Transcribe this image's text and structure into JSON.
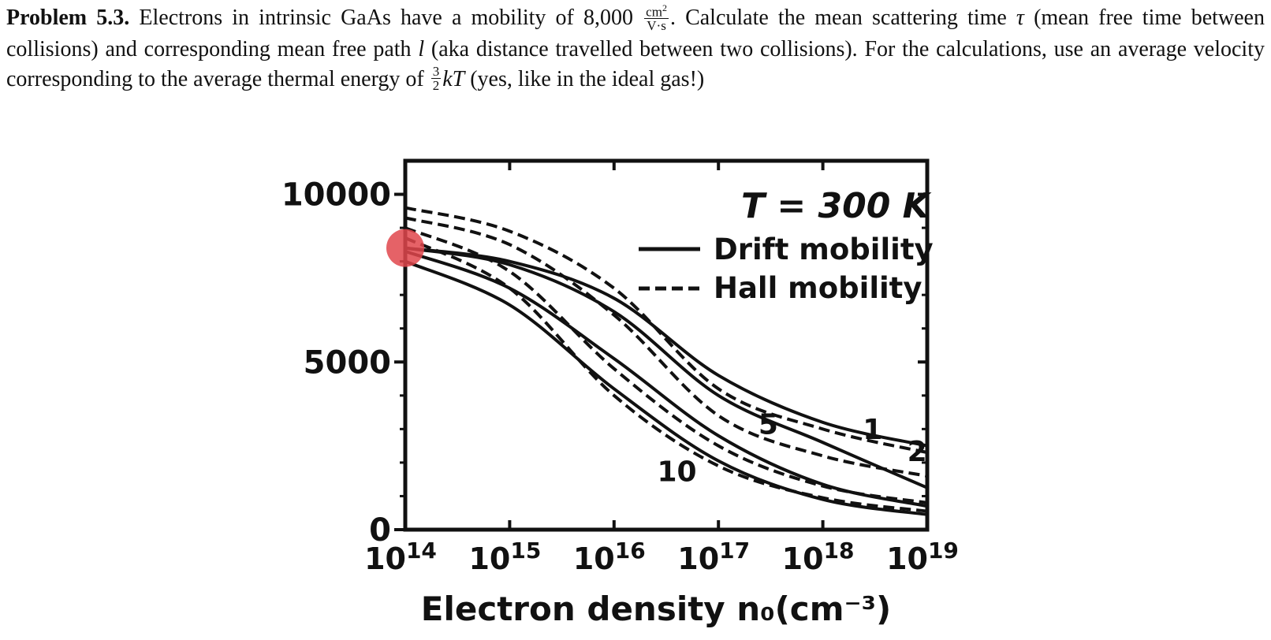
{
  "problem": {
    "label": "Problem 5.3.",
    "text_1": " Electrons in intrinsic GaAs have a mobility of 8,000 ",
    "unit_num_base": "cm",
    "unit_num_exp": "2",
    "unit_den": "V·s",
    "text_2": ". Calculate the mean scattering time ",
    "tau": "τ",
    "text_3": " (mean free time between collisions) and corresponding mean free path ",
    "ell": "l",
    "text_4": " (aka distance travelled between two collisions). For the calculations, use an average velocity corresponding to the average thermal energy of ",
    "frac_num": "3",
    "frac_den": "2",
    "kT": "kT",
    "text_5": " (yes, like in the ideal gas!)"
  },
  "chart_data": {
    "type": "line",
    "x_scale": "log",
    "xlim": [
      100000000000000.0,
      1e+19
    ],
    "ylim": [
      0,
      11000
    ],
    "x_tick_labels": [
      "10^14",
      "10^15",
      "10^16",
      "10^17",
      "10^18",
      "10^19"
    ],
    "y_tick_labels": [
      "0",
      "5000",
      "10000"
    ],
    "y_ticks": [
      0,
      5000,
      10000
    ],
    "xlabel": "Electron density n₀(cm⁻³)",
    "annotation": "T = 300 K",
    "legend": [
      {
        "label": "Drift mobility",
        "style": "solid"
      },
      {
        "label": "Hall mobility",
        "style": "dashed"
      }
    ],
    "legend_position": "top-right",
    "curve_labels": [
      {
        "text": "1",
        "x": 3e+18,
        "y": 2700
      },
      {
        "text": "2",
        "x": 8e+18,
        "y": 2050
      },
      {
        "text": "5",
        "x": 3e+17,
        "y": 2850
      },
      {
        "text": "10",
        "x": 4e+16,
        "y": 1450
      }
    ],
    "series": [
      {
        "label": "1",
        "style": "solid",
        "x": [
          100000000000000.0,
          1000000000000000.0,
          1e+16,
          1e+17,
          1e+18,
          1e+19
        ],
        "y": [
          8400,
          8000,
          6900,
          4600,
          3200,
          2500
        ]
      },
      {
        "label": "2",
        "style": "solid",
        "x": [
          100000000000000.0,
          1000000000000000.0,
          1e+16,
          1e+17,
          1e+18,
          1e+19
        ],
        "y": [
          8400,
          7900,
          6500,
          4000,
          2600,
          1250
        ]
      },
      {
        "label": "5",
        "style": "solid",
        "x": [
          100000000000000.0,
          1000000000000000.0,
          1e+16,
          1e+17,
          1e+18,
          1e+19
        ],
        "y": [
          8300,
          7200,
          5100,
          2800,
          1350,
          700
        ]
      },
      {
        "label": "10",
        "style": "solid",
        "x": [
          100000000000000.0,
          1000000000000000.0,
          1e+16,
          1e+17,
          1e+18,
          1e+19
        ],
        "y": [
          8000,
          6700,
          4200,
          2050,
          900,
          450
        ]
      },
      {
        "label": "1",
        "style": "dashed",
        "x": [
          100000000000000.0,
          1000000000000000.0,
          1e+16,
          1e+17,
          1e+18,
          1e+19
        ],
        "y": [
          9600,
          8900,
          7200,
          4200,
          3000,
          2300
        ]
      },
      {
        "label": "2",
        "style": "dashed",
        "x": [
          100000000000000.0,
          1000000000000000.0,
          1e+16,
          1e+17,
          1e+18,
          1e+19
        ],
        "y": [
          9300,
          8500,
          6400,
          3400,
          2200,
          1600
        ]
      },
      {
        "label": "5",
        "style": "dashed",
        "x": [
          100000000000000.0,
          1000000000000000.0,
          1e+16,
          1e+17,
          1e+18,
          1e+19
        ],
        "y": [
          9000,
          7700,
          4800,
          2500,
          1300,
          800
        ]
      },
      {
        "label": "10",
        "style": "dashed",
        "x": [
          100000000000000.0,
          1000000000000000.0,
          1e+16,
          1e+17,
          1e+18,
          1e+19
        ],
        "y": [
          8700,
          7200,
          4000,
          1900,
          950,
          550
        ]
      }
    ],
    "marker": {
      "x": 100000000000000.0,
      "y": 8400,
      "color": "#e0474c"
    }
  }
}
